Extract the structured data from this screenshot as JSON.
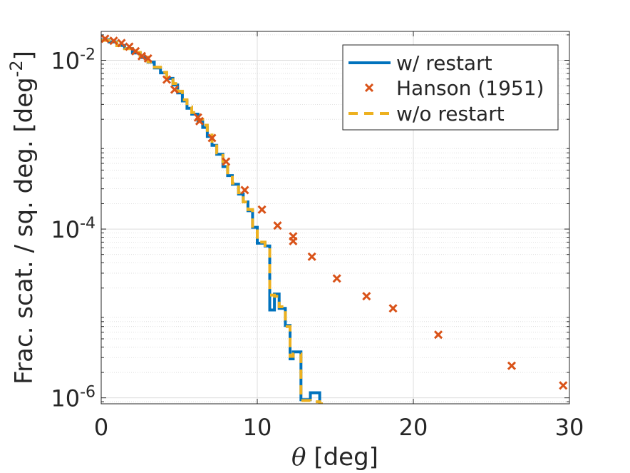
{
  "chart_data": {
    "type": "line",
    "xlabel_symbol": "θ",
    "xlabel_unit": " [deg]",
    "ylabel_main": "Frac. scat. / sq. deg. [deg",
    "ylabel_exp": "-2",
    "ylabel_close": "]",
    "xlim": [
      0,
      30
    ],
    "ylim": [
      8.5e-07,
      0.022
    ],
    "yscale": "log",
    "grid": true,
    "legend_position": "top-right",
    "x_ticks": [
      {
        "value": 0,
        "label": "0"
      },
      {
        "value": 10,
        "label": "10"
      },
      {
        "value": 20,
        "label": "20"
      },
      {
        "value": 30,
        "label": "30"
      }
    ],
    "y_ticks": [
      {
        "value": 0.01,
        "base": "10",
        "exp": "-2"
      },
      {
        "value": 0.0001,
        "base": "10",
        "exp": "-4"
      },
      {
        "value": 1e-06,
        "base": "10",
        "exp": "-6"
      }
    ],
    "series": [
      {
        "name": "w/ restart",
        "style": "stairs-solid",
        "color": "#0072BD",
        "x": [
          0.0,
          0.5,
          1.0,
          1.5,
          2.0,
          2.5,
          3.0,
          3.4,
          3.8,
          4.2,
          4.6,
          4.9,
          5.2,
          5.5,
          5.8,
          6.2,
          6.5,
          6.8,
          7.1,
          7.4,
          7.8,
          8.1,
          8.4,
          8.8,
          9.1,
          9.4,
          9.7,
          10.0,
          10.5,
          10.8,
          11.1,
          11.4,
          11.8,
          12.1,
          12.3,
          12.8,
          13.4,
          14.0
        ],
        "y": [
          0.0175,
          0.0165,
          0.015,
          0.0138,
          0.0122,
          0.0108,
          0.0095,
          0.0081,
          0.0071,
          0.0061,
          0.0051,
          0.0041,
          0.0033,
          0.0027,
          0.0023,
          0.0019,
          0.0016,
          0.00125,
          0.00098,
          0.00077,
          0.00055,
          0.00043,
          0.00034,
          0.00026,
          0.00021,
          0.000165,
          0.000105,
          6.8e-05,
          6.3e-05,
          1.1e-05,
          1.7e-05,
          1.15e-05,
          7.2e-06,
          2.9e-06,
          3.5e-06,
          9.5e-07,
          1.15e-06,
          8.5e-07
        ]
      },
      {
        "name": "Hanson (1951)",
        "style": "markers-x",
        "color": "#D95319",
        "x": [
          0.25,
          0.8,
          1.3,
          1.8,
          2.2,
          2.6,
          3.0,
          4.2,
          4.7,
          6.2,
          6.3,
          7.1,
          8.0,
          9.2,
          10.3,
          11.3,
          12.3,
          12.3,
          13.5,
          15.1,
          17.0,
          18.7,
          21.6,
          26.3,
          29.6
        ],
        "y": [
          0.018,
          0.017,
          0.016,
          0.0145,
          0.0128,
          0.0112,
          0.0105,
          0.0059,
          0.0045,
          0.0021,
          0.0019,
          0.0012,
          0.00063,
          0.00029,
          0.00017,
          0.00011,
          8.2e-05,
          7.2e-05,
          4.7e-05,
          2.6e-05,
          1.6e-05,
          1.15e-05,
          5.6e-06,
          2.4e-06,
          1.4e-06
        ]
      },
      {
        "name": "w/o restart",
        "style": "stairs-dashed",
        "color": "#EDB120",
        "x": [
          0.0,
          0.5,
          1.0,
          1.5,
          2.0,
          2.5,
          3.0,
          3.4,
          3.8,
          4.2,
          4.6,
          4.9,
          5.2,
          5.5,
          5.8,
          6.2,
          6.5,
          6.8,
          7.1,
          7.4,
          7.8,
          8.1,
          8.4,
          8.8,
          9.1,
          9.4,
          9.7,
          10.0,
          10.5,
          10.8,
          11.1,
          11.4,
          11.8,
          12.1,
          12.3,
          12.8,
          13.4,
          14.0
        ],
        "y": [
          0.0172,
          0.0163,
          0.0149,
          0.0137,
          0.0124,
          0.0109,
          0.0096,
          0.0083,
          0.0072,
          0.0063,
          0.0053,
          0.0043,
          0.0034,
          0.0028,
          0.0024,
          0.002,
          0.0017,
          0.0013,
          0.00102,
          0.0008,
          0.00057,
          0.00044,
          0.00035,
          0.00027,
          0.00021,
          0.00017,
          0.000108,
          7e-05,
          6.4e-05,
          1.65e-05,
          1.6e-05,
          1.2e-05,
          7e-06,
          3.1e-06,
          3.3e-06,
          9.3e-07,
          9e-07,
          8.5e-07
        ]
      }
    ]
  }
}
